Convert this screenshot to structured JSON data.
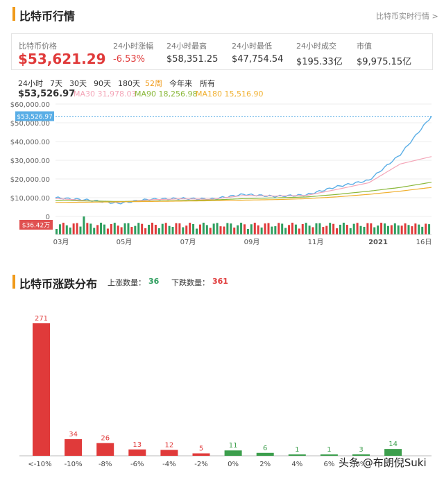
{
  "header": {
    "title": "比特币行情",
    "link": "比特币实时行情 >"
  },
  "stats": [
    {
      "label": "比特币价格",
      "value": "$53,621.29",
      "color": "#e03a3a"
    },
    {
      "label": "24小时涨幅",
      "value": "-6.53%",
      "color": "#e03a3a"
    },
    {
      "label": "24小时最高",
      "value": "$58,351.25",
      "color": "#333333"
    },
    {
      "label": "24小时最低",
      "value": "$47,754.54",
      "color": "#333333"
    },
    {
      "label": "24小时成交",
      "value": "$195.33亿",
      "color": "#333333"
    },
    {
      "label": "市值",
      "value": "$9,975.15亿",
      "color": "#333333"
    }
  ],
  "tabs": [
    "24小时",
    "7天",
    "30天",
    "90天",
    "180天",
    "52周",
    "今年来",
    "所有"
  ],
  "active_tab": "52周",
  "price_line": {
    "current": "$53,526.97",
    "ma30": "MA30 31,978.03",
    "ma90": "MA90 18,256.98",
    "ma180": "MA180 15,516.90",
    "marker_label": "$53,526.97",
    "volume_label": "$36.42万",
    "colors": {
      "price": "#5aaee6",
      "ma30": "#f4a6b8",
      "ma90": "#8ab83a",
      "ma180": "#f0b030",
      "vol_up": "#2e9e5e",
      "vol_down": "#e03a3a",
      "marker": "#5aaee6",
      "vol_marker": "#e05050"
    }
  },
  "distribution": {
    "title": "比特币涨跌分布",
    "up_label": "上涨数量：",
    "up_count": "36",
    "down_label": "下跌数量：",
    "down_count": "361",
    "watermark": "头条 @布朗倪Suki"
  },
  "chart_data": [
    {
      "type": "line",
      "title": "",
      "y_ticks": [
        "$60,000.00",
        "$50,000.00",
        "$40,000.00",
        "$30,000.00",
        "$20,000.00",
        "$10,000.00",
        "0"
      ],
      "ylim": [
        0,
        60000
      ],
      "x_ticks": [
        "03月",
        "05月",
        "07月",
        "09月",
        "11月",
        "2021",
        "16日"
      ],
      "x": [
        "2020-02",
        "2020-03",
        "2020-04",
        "2020-05",
        "2020-06",
        "2020-07",
        "2020-08",
        "2020-09",
        "2020-10",
        "2020-11",
        "2020-12",
        "2021-01",
        "2021-02"
      ],
      "series": [
        {
          "name": "price",
          "values": [
            10000,
            8800,
            7000,
            9200,
            9600,
            9300,
            11800,
            10700,
            11500,
            16000,
            19300,
            33000,
            53527
          ]
        },
        {
          "name": "MA30",
          "values": [
            9600,
            8500,
            7600,
            8900,
            9400,
            9200,
            11200,
            10900,
            11200,
            14500,
            18000,
            28000,
            31978
          ]
        },
        {
          "name": "MA90",
          "values": [
            8500,
            8300,
            8000,
            8200,
            8500,
            8800,
            9500,
            9900,
            10400,
            11800,
            13500,
            15500,
            18257
          ]
        },
        {
          "name": "MA180",
          "values": [
            7500,
            7600,
            7800,
            8000,
            8200,
            8400,
            8700,
            9000,
            9500,
            10500,
            11800,
            13500,
            15517
          ]
        }
      ]
    },
    {
      "type": "bar",
      "title": "",
      "categories": [
        "<-10%",
        "-10%",
        "-8%",
        "-6%",
        "-4%",
        "-2%",
        "0%",
        "2%",
        "4%",
        "6%",
        "8%",
        "10%"
      ],
      "x_ticks": [
        "<-10%",
        "-10%",
        "-8%",
        "-6%",
        "-4%",
        "-2%",
        "0%",
        "2%",
        "4%",
        "6%",
        "8%"
      ],
      "values": [
        271,
        34,
        26,
        13,
        12,
        5,
        11,
        6,
        1,
        1,
        3,
        14
      ],
      "colors": [
        "#e03a3a",
        "#e03a3a",
        "#e03a3a",
        "#e03a3a",
        "#e03a3a",
        "#e03a3a",
        "#3c9e4c",
        "#3c9e4c",
        "#3c9e4c",
        "#3c9e4c",
        "#3c9e4c",
        "#3c9e4c"
      ],
      "ylim": [
        0,
        271
      ]
    }
  ]
}
